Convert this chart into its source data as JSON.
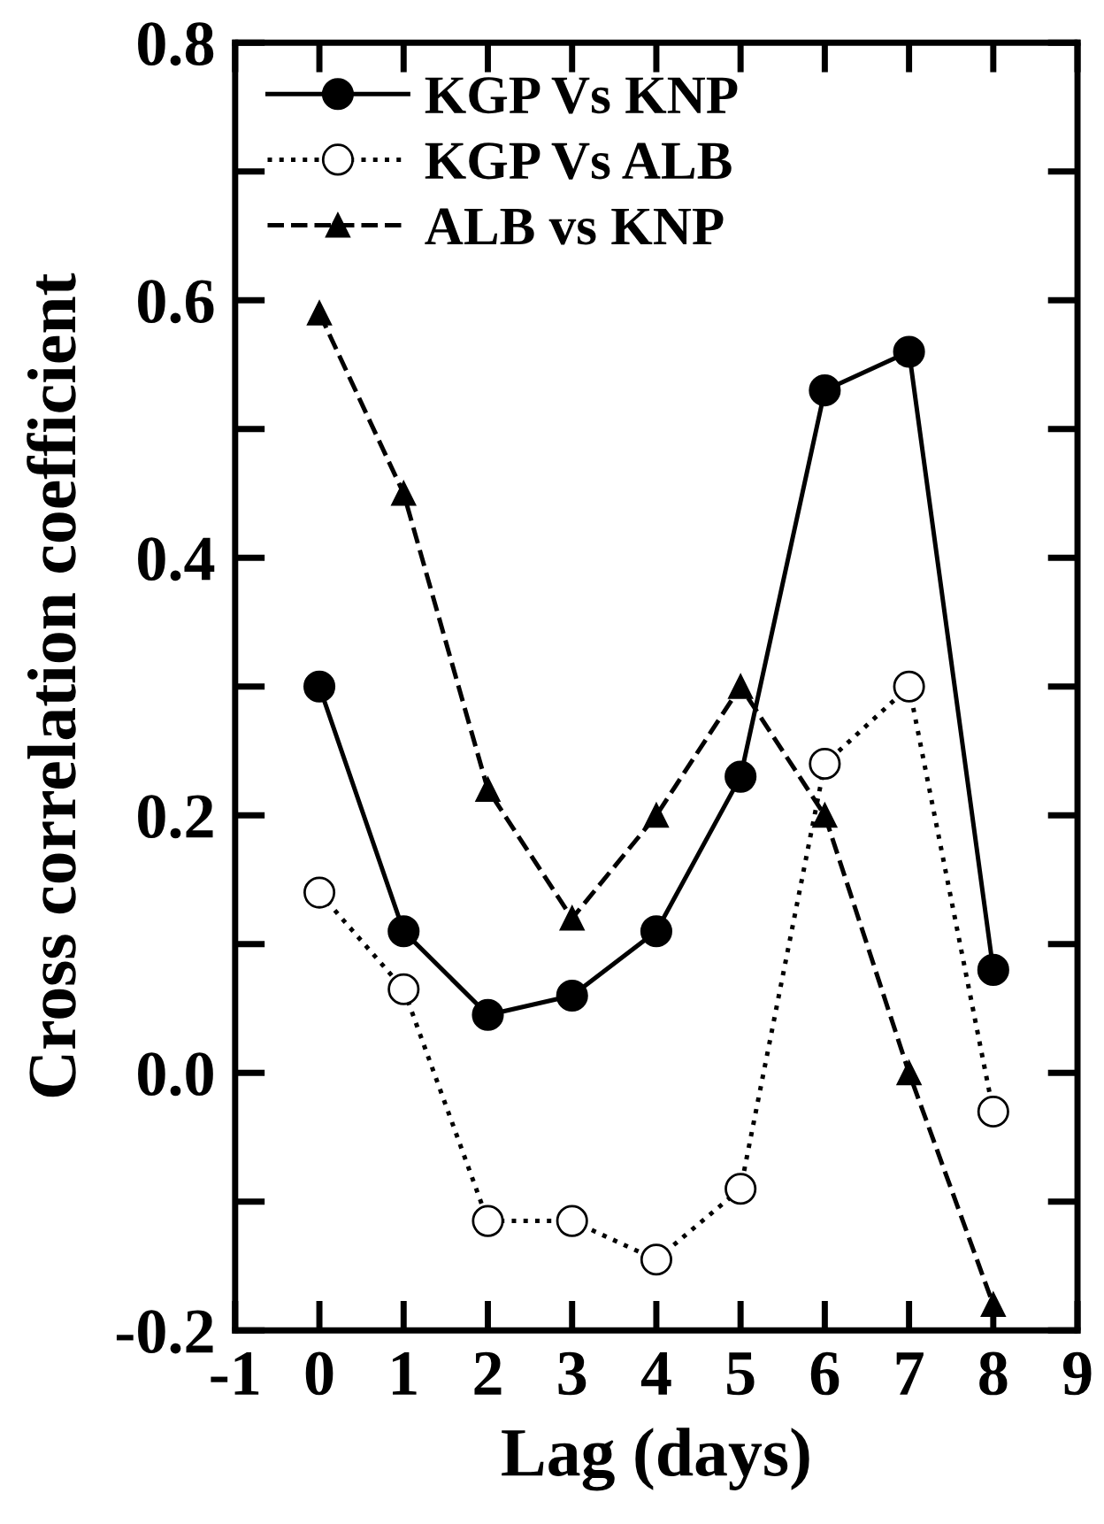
{
  "chart_data": {
    "type": "line",
    "xlabel": "Lag (days)",
    "ylabel": "Cross correlation coefficient",
    "x": [
      0,
      1,
      2,
      3,
      4,
      5,
      6,
      7,
      8
    ],
    "xlim": [
      -1,
      9
    ],
    "xticks": [
      -1,
      0,
      1,
      2,
      3,
      4,
      5,
      6,
      7,
      8,
      9
    ],
    "ylim": [
      -0.2,
      0.8
    ],
    "yticks": [
      {
        "value": -0.2,
        "label": "-0.2"
      },
      {
        "value": 0.0,
        "label": "0.0"
      },
      {
        "value": 0.2,
        "label": "0.2"
      },
      {
        "value": 0.4,
        "label": "0.4"
      },
      {
        "value": 0.6,
        "label": "0.6"
      },
      {
        "value": 0.8,
        "label": "0.8"
      }
    ],
    "grid": false,
    "legend": "top left",
    "series": [
      {
        "name": "KGP Vs KNP",
        "color": "#000000",
        "marker": "circle",
        "line_style": "solid",
        "values": [
          0.3,
          0.11,
          0.045,
          0.06,
          0.11,
          0.23,
          0.53,
          0.56,
          0.08
        ]
      },
      {
        "name": "KGP Vs ALB",
        "color": "#000000",
        "marker": "circle",
        "line_style": "dotted",
        "values": [
          0.14,
          0.065,
          -0.115,
          -0.115,
          -0.145,
          -0.09,
          0.24,
          0.3,
          -0.03
        ]
      },
      {
        "name": "ALB vs KNP",
        "color": "#000000",
        "marker": "triangle",
        "line_style": "dashed",
        "values": [
          0.59,
          0.45,
          0.22,
          0.12,
          0.2,
          0.3,
          0.2,
          0.0,
          -0.18
        ]
      }
    ]
  }
}
